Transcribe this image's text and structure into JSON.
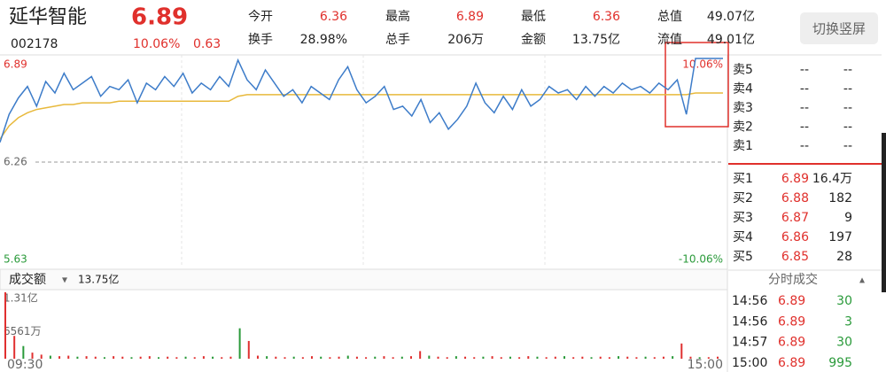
{
  "header": {
    "name": "延华智能",
    "price": "6.89",
    "code": "002178",
    "change_pct": "10.06%",
    "change": "0.63",
    "stats": [
      {
        "label": "今开",
        "value": "6.36"
      },
      {
        "label": "最高",
        "value": "6.89"
      },
      {
        "label": "最低",
        "value": "6.36"
      },
      {
        "label": "总值",
        "value": "49.07亿"
      },
      {
        "label": "换手",
        "value": "28.98%"
      },
      {
        "label": "总手",
        "value": "206万"
      },
      {
        "label": "金额",
        "value": "13.75亿"
      },
      {
        "label": "流值",
        "value": "49.01亿"
      }
    ]
  },
  "button": "切换竖屏",
  "chart_data": {
    "type": "line",
    "ylim": [
      5.63,
      6.89
    ],
    "yticks": [
      6.89,
      6.26,
      5.63
    ],
    "y2lim": [
      -10.06,
      10.06
    ],
    "y2ticks": [
      {
        "value": 10.06,
        "label": "10.06%"
      },
      {
        "value": -10.06,
        "label": "-10.06%"
      }
    ],
    "xticks": [
      "09:30",
      "15:00"
    ],
    "series": [
      {
        "color": "#3d7cc9",
        "values": [
          6.38,
          6.55,
          6.65,
          6.72,
          6.6,
          6.75,
          6.68,
          6.8,
          6.7,
          6.74,
          6.78,
          6.66,
          6.72,
          6.7,
          6.76,
          6.62,
          6.74,
          6.7,
          6.78,
          6.72,
          6.8,
          6.68,
          6.74,
          6.7,
          6.78,
          6.72,
          6.88,
          6.76,
          6.7,
          6.82,
          6.74,
          6.66,
          6.7,
          6.62,
          6.72,
          6.68,
          6.64,
          6.76,
          6.84,
          6.7,
          6.62,
          6.66,
          6.72,
          6.58,
          6.6,
          6.54,
          6.64,
          6.5,
          6.56,
          6.46,
          6.52,
          6.6,
          6.74,
          6.62,
          6.56,
          6.66,
          6.58,
          6.7,
          6.6,
          6.64,
          6.72,
          6.68,
          6.7,
          6.64,
          6.72,
          6.66,
          6.72,
          6.68,
          6.74,
          6.7,
          6.72,
          6.68,
          6.74,
          6.7,
          6.76,
          6.55,
          6.89,
          6.89,
          6.89,
          6.89
        ]
      },
      {
        "color": "#e8b93c",
        "values": [
          6.4,
          6.48,
          6.53,
          6.56,
          6.58,
          6.59,
          6.6,
          6.61,
          6.61,
          6.62,
          6.62,
          6.62,
          6.62,
          6.63,
          6.63,
          6.63,
          6.63,
          6.63,
          6.63,
          6.63,
          6.63,
          6.63,
          6.63,
          6.63,
          6.63,
          6.63,
          6.66,
          6.67,
          6.67,
          6.67,
          6.67,
          6.67,
          6.67,
          6.67,
          6.67,
          6.67,
          6.67,
          6.67,
          6.67,
          6.67,
          6.67,
          6.67,
          6.67,
          6.67,
          6.67,
          6.67,
          6.67,
          6.67,
          6.67,
          6.67,
          6.67,
          6.67,
          6.67,
          6.67,
          6.67,
          6.67,
          6.67,
          6.67,
          6.67,
          6.67,
          6.67,
          6.67,
          6.67,
          6.67,
          6.67,
          6.67,
          6.67,
          6.67,
          6.67,
          6.67,
          6.67,
          6.67,
          6.67,
          6.67,
          6.67,
          6.67,
          6.68,
          6.68,
          6.68,
          6.68
        ]
      }
    ],
    "volume": {
      "label": "成交额",
      "total": "13.75亿",
      "ylim": [
        0,
        1.31
      ],
      "yticks": [
        {
          "value": 1.31,
          "label": "1.31亿"
        },
        {
          "value": 0.6561,
          "label": "6561万"
        }
      ],
      "color": "#e03030",
      "values": [
        1.31,
        0.45,
        0.25,
        0.12,
        0.08,
        0.06,
        0.05,
        0.06,
        0.04,
        0.05,
        0.04,
        0.03,
        0.05,
        0.04,
        0.03,
        0.04,
        0.05,
        0.03,
        0.04,
        0.03,
        0.04,
        0.03,
        0.05,
        0.04,
        0.03,
        0.04,
        0.6,
        0.35,
        0.06,
        0.05,
        0.04,
        0.03,
        0.04,
        0.03,
        0.05,
        0.04,
        0.03,
        0.04,
        0.06,
        0.04,
        0.03,
        0.04,
        0.05,
        0.03,
        0.04,
        0.05,
        0.15,
        0.06,
        0.04,
        0.03,
        0.05,
        0.04,
        0.03,
        0.04,
        0.05,
        0.03,
        0.04,
        0.03,
        0.05,
        0.04,
        0.03,
        0.04,
        0.05,
        0.03,
        0.04,
        0.03,
        0.04,
        0.03,
        0.05,
        0.04,
        0.03,
        0.04,
        0.03,
        0.04,
        0.05,
        0.3,
        0.04,
        0.03,
        0.03,
        0.04
      ]
    }
  },
  "order_book": {
    "sell": [
      {
        "label": "卖5",
        "price": "--",
        "volume": "--"
      },
      {
        "label": "卖4",
        "price": "--",
        "volume": "--"
      },
      {
        "label": "卖3",
        "price": "--",
        "volume": "--"
      },
      {
        "label": "卖2",
        "price": "--",
        "volume": "--"
      },
      {
        "label": "卖1",
        "price": "--",
        "volume": "--"
      }
    ],
    "buy": [
      {
        "label": "买1",
        "price": "6.89",
        "volume": "16.4万"
      },
      {
        "label": "买2",
        "price": "6.88",
        "volume": "182"
      },
      {
        "label": "买3",
        "price": "6.87",
        "volume": "9"
      },
      {
        "label": "买4",
        "price": "6.86",
        "volume": "197"
      },
      {
        "label": "买5",
        "price": "6.85",
        "volume": "28"
      }
    ]
  },
  "trades": {
    "title": "分时成交",
    "rows": [
      {
        "time": "14:56",
        "price": "6.89",
        "volume": "30"
      },
      {
        "time": "14:56",
        "price": "6.89",
        "volume": "3"
      },
      {
        "time": "14:57",
        "price": "6.89",
        "volume": "30"
      },
      {
        "time": "15:00",
        "price": "6.89",
        "volume": "995"
      }
    ]
  }
}
